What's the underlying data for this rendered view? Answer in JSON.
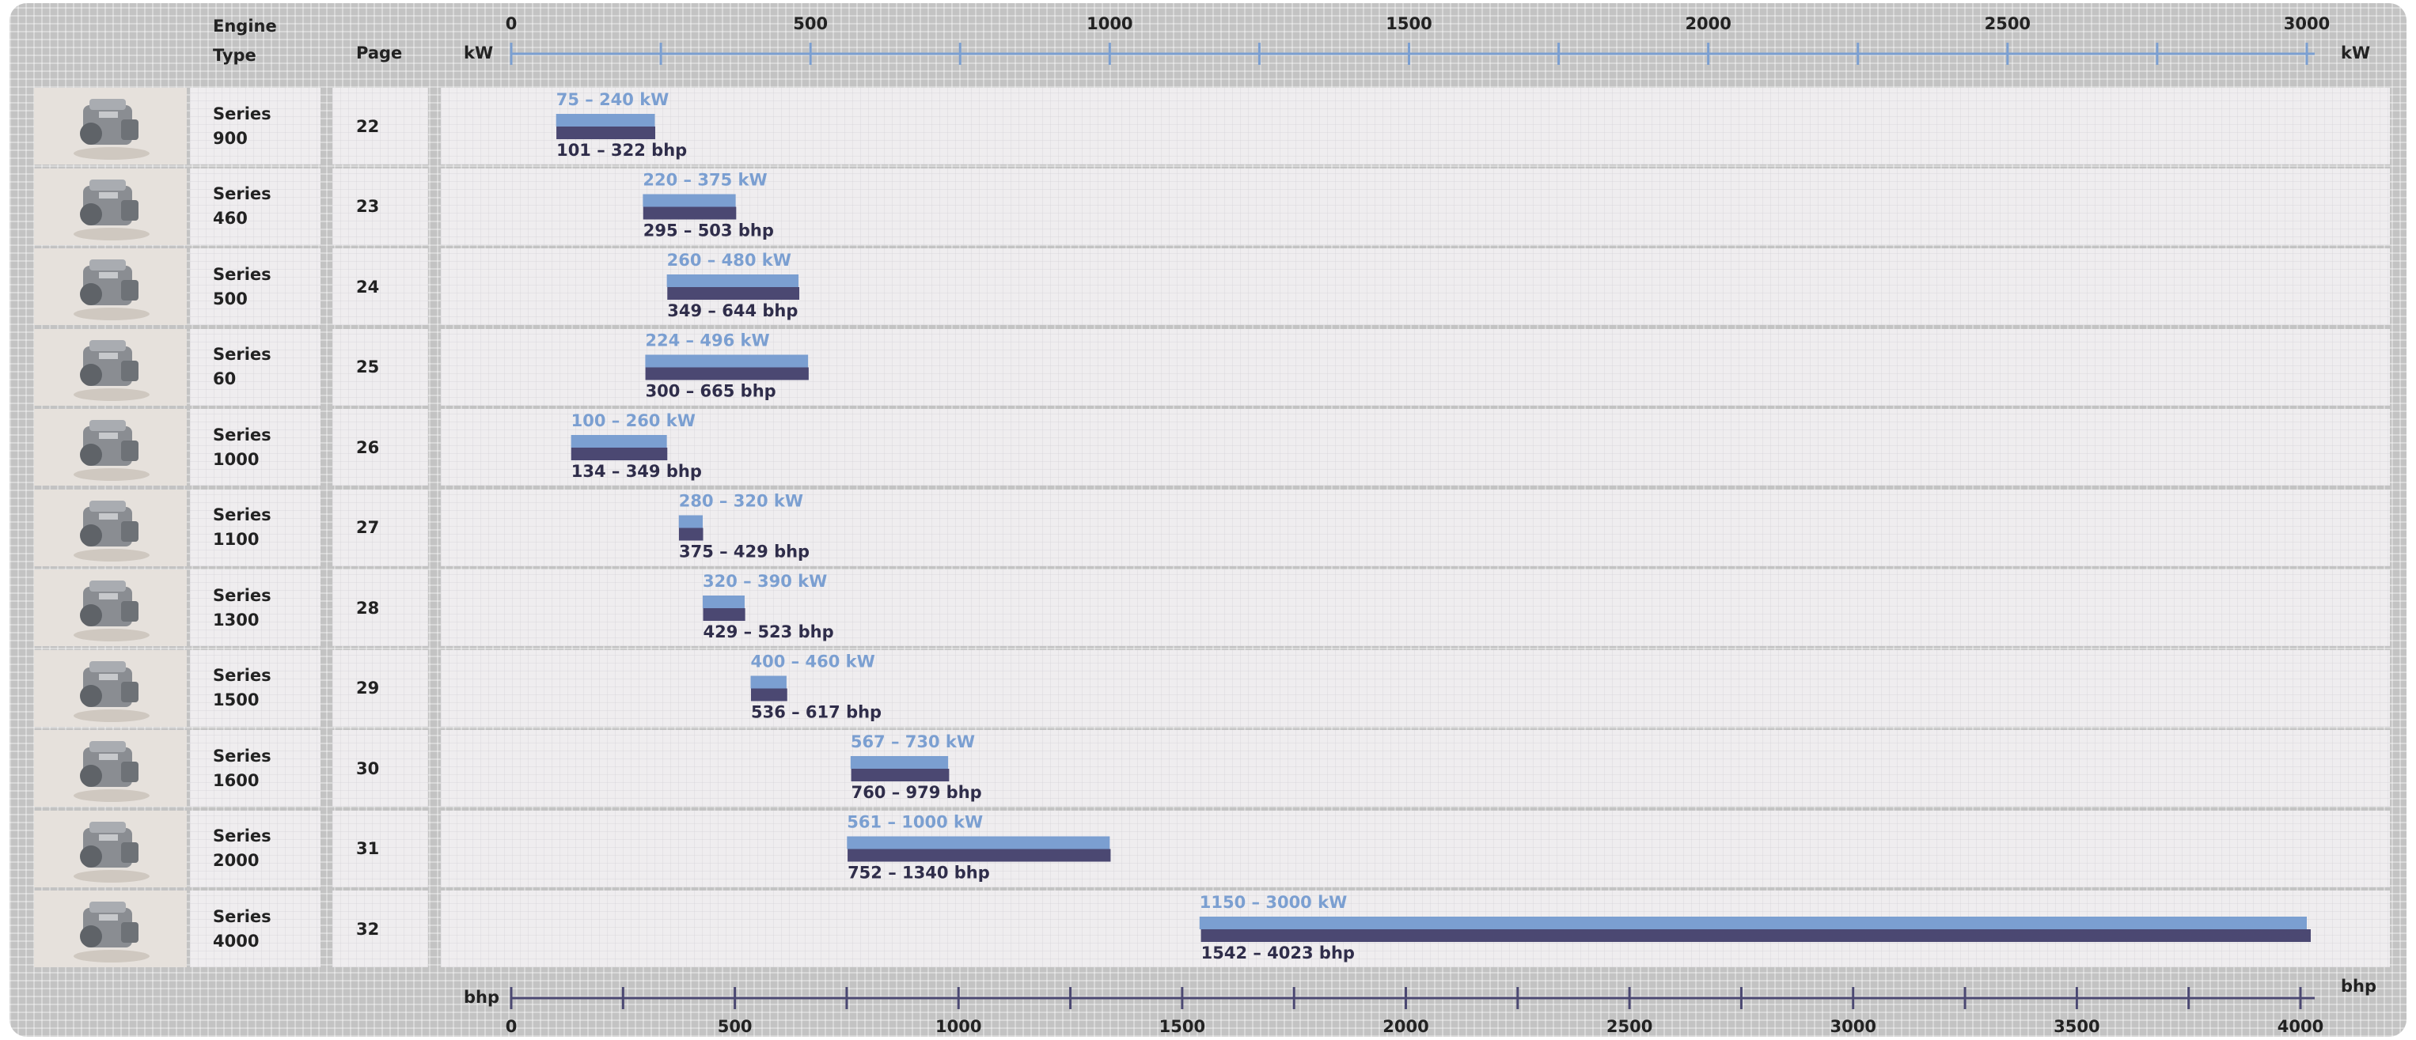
{
  "chart_data": {
    "type": "range-bar",
    "category_header": "Engine Type",
    "page_header": "Page",
    "categories": [
      "Series 900",
      "Series 460",
      "Series 500",
      "Series 60",
      "Series 1000",
      "Series 1100",
      "Series 1300",
      "Series 1500",
      "Series 1600",
      "Series 2000",
      "Series 4000"
    ],
    "pages": [
      22,
      23,
      24,
      25,
      26,
      27,
      28,
      29,
      30,
      31,
      32
    ],
    "xlim": [
      0,
      3000
    ],
    "xticks": [
      0,
      500,
      1000,
      1500,
      2000,
      2500,
      3000
    ],
    "x_minor_ticks": [
      250,
      750,
      1250,
      1750,
      2250,
      2750
    ],
    "x2lim": [
      0,
      4000
    ],
    "x2ticks": [
      0,
      500,
      1000,
      1500,
      2000,
      2500,
      3000,
      3500,
      4000
    ],
    "x2_minor_ticks": [
      250,
      750,
      1250,
      1750,
      2250,
      2750,
      3250,
      3750
    ],
    "series": [
      {
        "name": "kW",
        "color": "#7b9fd1",
        "axis": "x",
        "low": [
          75,
          220,
          260,
          224,
          100,
          280,
          320,
          400,
          567,
          561,
          1150
        ],
        "high": [
          240,
          375,
          480,
          496,
          260,
          320,
          390,
          460,
          730,
          1000,
          3000
        ],
        "value_labels": [
          "75 – 240 kW",
          "220 – 375 kW",
          "260 – 480 kW",
          "224 – 496 kW",
          "100 – 260 kW",
          "280 – 320 kW",
          "320 – 390 kW",
          "400 – 460 kW",
          "567 – 730 kW",
          "561 – 1000 kW",
          "1150 – 3000 kW"
        ]
      },
      {
        "name": "bhp",
        "color": "#4b4872",
        "axis": "x2",
        "low": [
          101,
          295,
          349,
          300,
          134,
          375,
          429,
          536,
          760,
          752,
          1542
        ],
        "high": [
          322,
          503,
          644,
          665,
          349,
          429,
          523,
          617,
          979,
          1340,
          4023
        ],
        "value_labels": [
          "101 – 322 bhp",
          "295 – 503 bhp",
          "349 – 644 bhp",
          "300 – 665 bhp",
          "134 – 349 bhp",
          "375 – 429 bhp",
          "429 – 523 bhp",
          "536 – 617 bhp",
          "760 – 979 bhp",
          "752 – 1340 bhp",
          "1542 – 4023 bhp"
        ]
      }
    ]
  }
}
